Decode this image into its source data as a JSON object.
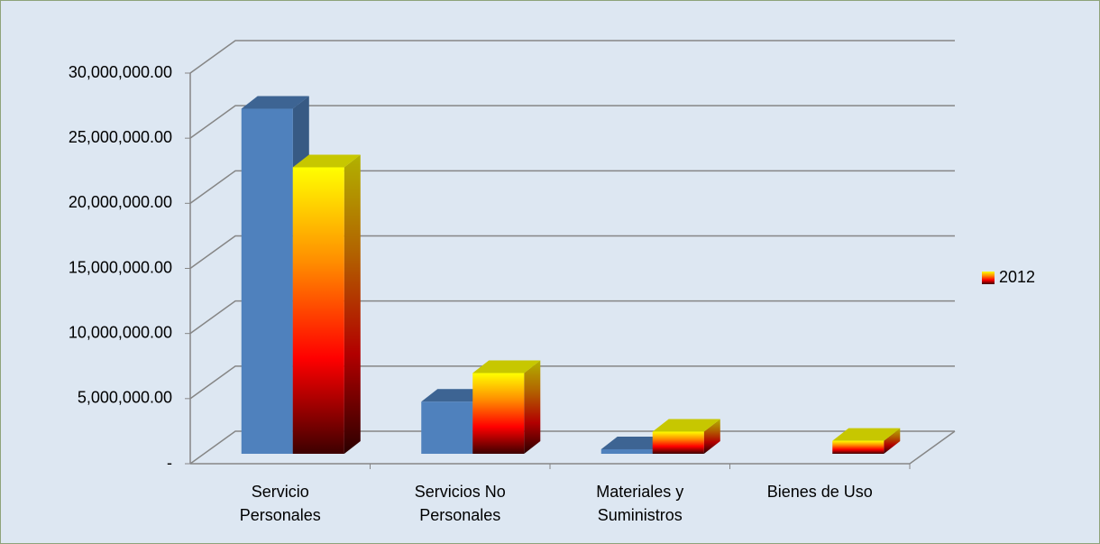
{
  "chart_data": {
    "type": "bar3d",
    "categories": [
      "Servicio Personales",
      "Servicios No Personales",
      "Materiales y Suministros",
      "Bienes de Uso"
    ],
    "series": [
      {
        "color": "#4f81bd",
        "values": [
          26500000,
          4000000,
          350000,
          0
        ]
      },
      {
        "name": "2012",
        "color": "#ffcc00",
        "gradient": [
          "#ffff00",
          "#ff8c00",
          "#ff0000",
          "#3d0000"
        ],
        "values": [
          22000000,
          6200000,
          1700000,
          1000000
        ]
      }
    ],
    "ylim": [
      0,
      30000000
    ],
    "yticks": [
      {
        "value": 0,
        "label": "-"
      },
      {
        "value": 5000000,
        "label": "5,000,000.00"
      },
      {
        "value": 10000000,
        "label": "10,000,000.00"
      },
      {
        "value": 15000000,
        "label": "15,000,000.00"
      },
      {
        "value": 20000000,
        "label": "20,000,000.00"
      },
      {
        "value": 25000000,
        "label": "25,000,000.00"
      },
      {
        "value": 30000000,
        "label": "30,000,000.00"
      }
    ],
    "grid": true,
    "legend": "right"
  }
}
